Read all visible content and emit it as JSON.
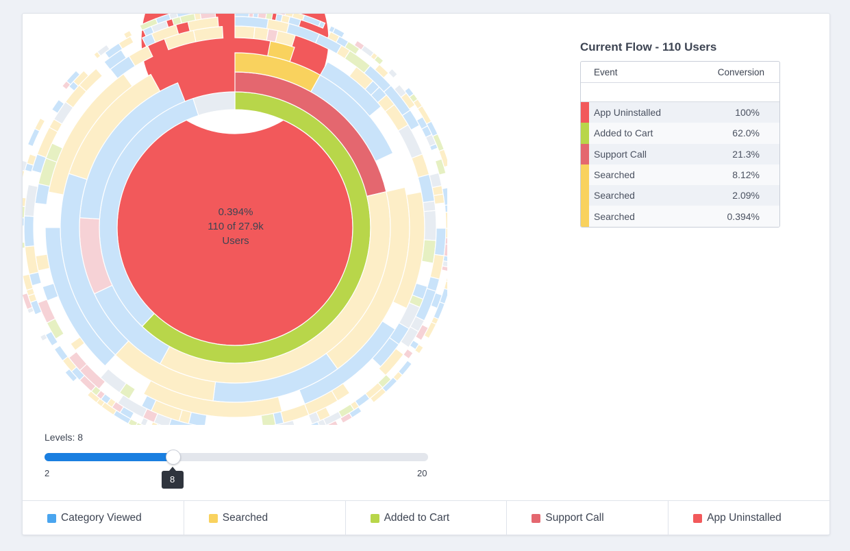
{
  "center": {
    "percent": "0.394%",
    "count": "110 of 27.9k",
    "unit": "Users"
  },
  "flow": {
    "title": "Current Flow - 110 Users",
    "col_event": "Event",
    "col_conversion": "Conversion",
    "rows": [
      {
        "event": "App Uninstalled",
        "conversion": "100%",
        "color": "#f2595b"
      },
      {
        "event": "Added to Cart",
        "conversion": "62.0%",
        "color": "#b8d64a"
      },
      {
        "event": "Support Call",
        "conversion": "21.3%",
        "color": "#e4676f"
      },
      {
        "event": "Searched",
        "conversion": "8.12%",
        "color": "#f9d25e"
      },
      {
        "event": "Searched",
        "conversion": "2.09%",
        "color": "#f9d25e"
      },
      {
        "event": "Searched",
        "conversion": "0.394%",
        "color": "#f9d25e"
      }
    ]
  },
  "levels": {
    "label": "Levels: 8",
    "min": 2,
    "max": 20,
    "value": 8,
    "min_label": "2",
    "max_label": "20",
    "value_label": "8",
    "fill_color": "#1a7fe0"
  },
  "legend": [
    {
      "label": "Category Viewed",
      "color": "#4aa5ef"
    },
    {
      "label": "Searched",
      "color": "#f9d25e"
    },
    {
      "label": "Added to Cart",
      "color": "#b8d64a"
    },
    {
      "label": "Support Call",
      "color": "#e4676f"
    },
    {
      "label": "App Uninstalled",
      "color": "#f2595b"
    }
  ],
  "chart_data": {
    "type": "sunburst",
    "unit": "percent of total users",
    "total_users": "27.9k",
    "depth_levels": 8,
    "highlighted_path": [
      {
        "level": 1,
        "event": "App Uninstalled",
        "share": 100
      },
      {
        "level": 2,
        "event": "Added to Cart",
        "share": 62.0
      },
      {
        "level": 3,
        "event": "Support Call",
        "share": 21.3
      },
      {
        "level": 4,
        "event": "Searched",
        "share": 8.12
      },
      {
        "level": 5,
        "event": "Searched",
        "share": 2.09
      },
      {
        "level": 6,
        "event": "Searched",
        "share": 0.394
      }
    ],
    "ring_segments": [
      {
        "level": 1,
        "event": "App Uninstalled",
        "start": 0,
        "end": 100,
        "highlight": true
      },
      {
        "level": 2,
        "event": "Added to Cart",
        "start": 0,
        "end": 62,
        "highlight": true
      },
      {
        "level": 2,
        "event": "Category Viewed",
        "start": 62,
        "end": 95
      },
      {
        "level": 2,
        "event": "Category Viewed",
        "start": 95,
        "end": 100,
        "faded": true
      },
      {
        "level": 3,
        "event": "Support Call",
        "start": 0,
        "end": 21.3,
        "highlight": true
      },
      {
        "level": 3,
        "event": "Searched",
        "start": 21.3,
        "end": 58
      },
      {
        "level": 3,
        "event": "Category Viewed",
        "start": 58,
        "end": 68
      },
      {
        "level": 3,
        "event": "Support Call",
        "start": 68,
        "end": 76,
        "faded": true
      },
      {
        "level": 3,
        "event": "Category Viewed",
        "start": 76,
        "end": 94
      },
      {
        "level": 4,
        "event": "Searched",
        "start": 0,
        "end": 8.12,
        "highlight": true
      },
      {
        "level": 4,
        "event": "Category Viewed",
        "start": 8.12,
        "end": 18
      },
      {
        "level": 4,
        "event": "Searched",
        "start": 21.3,
        "end": 40
      },
      {
        "level": 4,
        "event": "Category Viewed",
        "start": 40,
        "end": 52
      },
      {
        "level": 4,
        "event": "Searched",
        "start": 52,
        "end": 62
      },
      {
        "level": 4,
        "event": "Category Viewed",
        "start": 62,
        "end": 80
      },
      {
        "level": 4,
        "event": "Searched",
        "start": 80,
        "end": 92
      },
      {
        "level": 5,
        "event": "Searched",
        "start": 3,
        "end": 5.09,
        "highlight": true
      },
      {
        "level": 5,
        "event": "Category Viewed",
        "start": 8.12,
        "end": 14
      },
      {
        "level": 5,
        "event": "Searched",
        "start": 22,
        "end": 32
      },
      {
        "level": 5,
        "event": "Category Viewed",
        "start": 34,
        "end": 44
      },
      {
        "level": 5,
        "event": "Searched",
        "start": 46,
        "end": 58
      },
      {
        "level": 5,
        "event": "Category Viewed",
        "start": 62,
        "end": 75
      },
      {
        "level": 5,
        "event": "Searched",
        "start": 78,
        "end": 90
      }
    ]
  }
}
